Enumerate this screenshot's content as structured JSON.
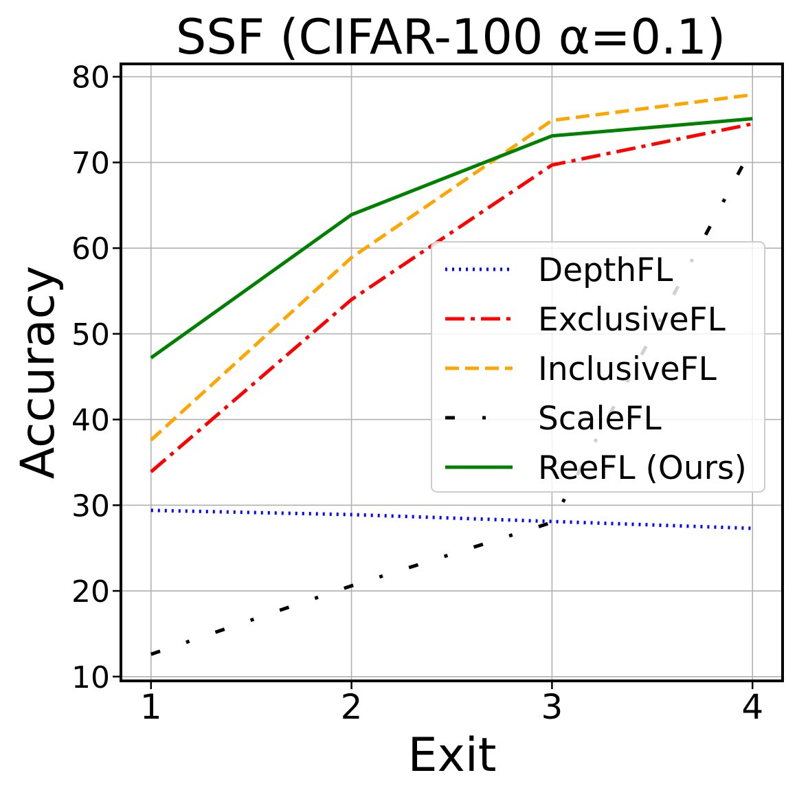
{
  "chart_data": {
    "type": "line",
    "title": "SSF (CIFAR-100 α=0.1)",
    "xlabel": "Exit",
    "ylabel": "Accuracy",
    "x": [
      1,
      2,
      3,
      4
    ],
    "xlim": [
      0.85,
      4.15
    ],
    "ylim": [
      9.5,
      81.5
    ],
    "xticks": [
      "1",
      "2",
      "3",
      "4"
    ],
    "yticks": [
      10,
      20,
      30,
      40,
      50,
      60,
      70,
      80
    ],
    "grid": true,
    "legend_position": "center-right",
    "series": [
      {
        "name": "DepthFL",
        "values": [
          29.4,
          28.9,
          28.1,
          27.3
        ],
        "color": "#0000ff",
        "dash": "dotted"
      },
      {
        "name": "ExclusiveFL",
        "values": [
          33.9,
          54.0,
          69.7,
          74.5
        ],
        "color": "#ff0000",
        "dash": "dashdot"
      },
      {
        "name": "InclusiveFL",
        "values": [
          37.6,
          58.9,
          74.9,
          77.9
        ],
        "color": "#ffa500",
        "dash": "dashed"
      },
      {
        "name": "ScaleFL",
        "values": [
          12.6,
          20.6,
          28.0,
          71.8
        ],
        "color": "#000000",
        "dash": "loose-dashdot"
      },
      {
        "name": "ReeFL (Ours)",
        "values": [
          47.2,
          63.9,
          73.1,
          75.1
        ],
        "color": "#008000",
        "dash": "solid"
      }
    ]
  }
}
